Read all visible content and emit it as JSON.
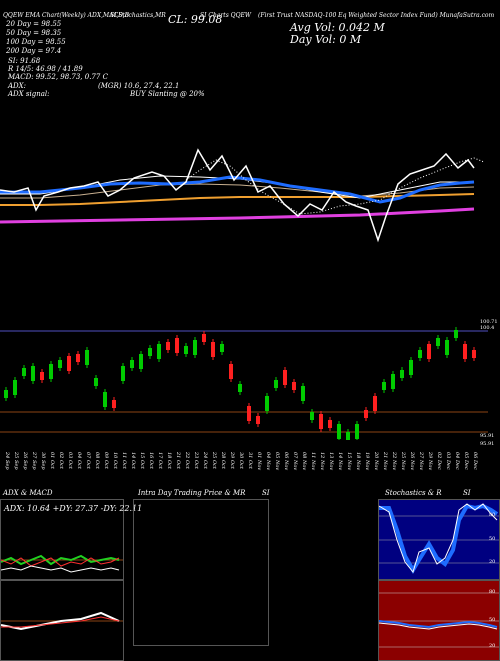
{
  "header": {
    "top_line": [
      "QQEW EMA Chart(Weekly) ADX,MACD,B",
      "SI,Stochastics,MR",
      "SI Charts QQEW",
      "(First Trust NASDAQ-100 Eq Weighted Sector Index Fund) MunafaSutra.com"
    ],
    "close_label": "CL: 99.08",
    "avg_vol": "Avg Vol: 0.042  M",
    "day_vol": "Day Vol: 0   M",
    "ma20": "20  Day = 98.55",
    "ma50": "50  Day = 98.35",
    "ma100": "100  Day = 98.55",
    "ma200": "200  Day = 97.4",
    "si": "SI: 91.68",
    "r_line": "R 14/5: 46.98 / 41.89",
    "macd": "MACD: 99.52, 98.73, 0.77 C",
    "adx": "ADX:",
    "adx_vals": "(MGR) 10.6, 27.4, 22.1",
    "adx_signal": "ADX signal:",
    "buy_signal": "BUY Slanting @ 20%"
  },
  "price_axis": {
    "top_label": "100.71",
    "top_label2": "100.4",
    "bottom_label": "95.91",
    "bottom_label2": "95.91"
  },
  "dates": [
    "24 Sep",
    "25 Sep",
    "26 Sep",
    "27 Sep",
    "30 Sep",
    "01 Oct",
    "02 Oct",
    "03 Oct",
    "04 Oct",
    "07 Oct",
    "08 Oct",
    "09 Oct",
    "10 Oct",
    "11 Oct",
    "14 Oct",
    "15 Oct",
    "16 Oct",
    "17 Oct",
    "18 Oct",
    "21 Oct",
    "22 Oct",
    "23 Oct",
    "24 Oct",
    "25 Oct",
    "28 Oct",
    "29 Oct",
    "30 Oct",
    "31 Oct",
    "01 Nov",
    "04 Nov",
    "05 Nov",
    "06 Nov",
    "07 Nov",
    "08 Nov",
    "11 Nov",
    "12 Nov",
    "13 Nov",
    "14 Nov",
    "15 Nov",
    "18 Nov",
    "19 Nov",
    "20 Nov",
    "21 Nov",
    "22 Nov",
    "25 Nov",
    "26 Nov",
    "27 Nov",
    "29 Nov",
    "02 Dec",
    "03 Dec",
    "04 Dec",
    "05 Dec",
    "06 Dec"
  ],
  "panels": {
    "adx": {
      "title": "ADX & MACD",
      "values": "ADX: 10.64  +DY: 27.37 -DY: 22.11"
    },
    "intraday": {
      "title": "Intra Day Trading Price  & MR",
      "si": "SI"
    },
    "stoch": {
      "title": "Stochastics & R",
      "si": "SI",
      "levels": [
        "80",
        "50",
        "20"
      ],
      "levels2": [
        "80",
        "50",
        "20"
      ]
    }
  },
  "colors": {
    "up_candle": "#00cc00",
    "down_candle": "#ff2020",
    "ma_blue": "#1e6cff",
    "ma_orange": "#f0a030",
    "ma_magenta": "#e040e0",
    "stoch_bg": "#000080",
    "rsi_bg": "#8b0000",
    "grid_brown": "#8b4513"
  },
  "chart_data": {
    "type": "candlestick",
    "categories": [
      "24 Sep",
      "25 Sep",
      "26 Sep",
      "27 Sep",
      "30 Sep",
      "01 Oct",
      "02 Oct",
      "03 Oct",
      "04 Oct",
      "07 Oct",
      "08 Oct",
      "09 Oct",
      "10 Oct",
      "11 Oct",
      "14 Oct",
      "15 Oct",
      "16 Oct",
      "17 Oct",
      "18 Oct",
      "21 Oct",
      "22 Oct",
      "23 Oct",
      "24 Oct",
      "25 Oct",
      "28 Oct",
      "29 Oct",
      "30 Oct",
      "31 Oct",
      "01 Nov",
      "04 Nov",
      "05 Nov",
      "06 Nov",
      "07 Nov",
      "08 Nov",
      "11 Nov",
      "12 Nov",
      "13 Nov",
      "14 Nov",
      "15 Nov",
      "18 Nov",
      "19 Nov",
      "20 Nov",
      "21 Nov",
      "22 Nov",
      "25 Nov",
      "26 Nov",
      "27 Nov",
      "29 Nov",
      "02 Dec",
      "03 Dec",
      "04 Dec",
      "05 Dec",
      "06 Dec"
    ],
    "series": [
      {
        "name": "up",
        "values": [
          1,
          1,
          1,
          1,
          0,
          1,
          1,
          0,
          0,
          1,
          1,
          1,
          0,
          1,
          1,
          1,
          1,
          1,
          0,
          0,
          1,
          1,
          0,
          0,
          1,
          0,
          1,
          0,
          0,
          1,
          1,
          0,
          0,
          1,
          1,
          0,
          0,
          1,
          1,
          1,
          0,
          0,
          1,
          1,
          1,
          1,
          1,
          0,
          1,
          1,
          1,
          0,
          0
        ]
      }
    ]
  }
}
